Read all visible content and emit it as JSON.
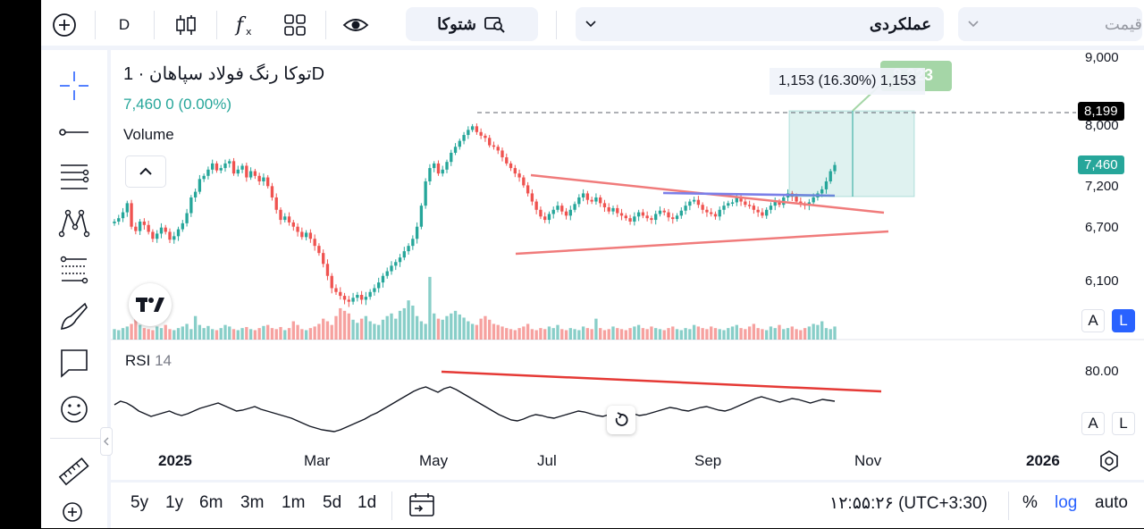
{
  "toolbar": {
    "interval": "D",
    "symbol_search": "شتوکا",
    "chart_type_select": "عملکردی",
    "price_select": "قیمت"
  },
  "header": {
    "title": "توکا رنگ فولاد سپاهان · 1D",
    "price": "7,460",
    "change": "0 (0.00%)",
    "volume_label": "Volume",
    "rsi_label": "RSI",
    "rsi_length": "14"
  },
  "tooltip": {
    "measure": "1,153 (16.30%) 1,153",
    "target": "8,223"
  },
  "price_axis": {
    "ticks": [
      "9,000",
      "8,000",
      "7,200",
      "6,700",
      "6,100"
    ],
    "last_price_tag": "7,460",
    "line_tag": "8,199"
  },
  "rsi_axis": {
    "ticks": [
      "80.00"
    ]
  },
  "time_axis": {
    "labels": [
      "2025",
      "Mar",
      "May",
      "Jul",
      "Sep",
      "Nov",
      "2026"
    ]
  },
  "axis_buttons": {
    "auto_label": "A",
    "log_label": "L"
  },
  "bottom": {
    "ranges": [
      "5y",
      "1y",
      "6m",
      "3m",
      "1m",
      "5d",
      "1d"
    ],
    "clock": "۱۲:۵۵:۲۶ (UTC+3:30)",
    "percent": "%",
    "log": "log",
    "auto": "auto"
  },
  "colors": {
    "up": "#26a69a",
    "down": "#ef5350",
    "accent": "#2962ff"
  },
  "chart_data": {
    "type": "candlestick",
    "title": "توکا رنگ فولاد سپاهان · 1D",
    "x_labels": [
      "2025",
      "Mar",
      "May",
      "Jul",
      "Sep",
      "Nov",
      "2026"
    ],
    "y_ticks": [
      9000,
      8000,
      7200,
      6700,
      6100
    ],
    "last_price": 7460,
    "horizontal_line": 8199,
    "price_path": [
      6760,
      6800,
      6870,
      6980,
      6700,
      6650,
      6760,
      6720,
      6640,
      6560,
      6620,
      6690,
      6640,
      6550,
      6590,
      6670,
      6740,
      6860,
      7050,
      7120,
      7280,
      7320,
      7400,
      7480,
      7390,
      7420,
      7480,
      7510,
      7350,
      7400,
      7450,
      7300,
      7380,
      7320,
      7250,
      7300,
      7190,
      7050,
      6900,
      6780,
      6820,
      6750,
      6700,
      6640,
      6580,
      6630,
      6560,
      6480,
      6400,
      6280,
      6150,
      6020,
      5980,
      5940,
      5900,
      5880,
      5920,
      5950,
      5900,
      5930,
      5980,
      6020,
      6080,
      6150,
      6200,
      6260,
      6300,
      6350,
      6420,
      6480,
      6560,
      6700,
      6950,
      7250,
      7420,
      7480,
      7350,
      7400,
      7500,
      7620,
      7700,
      7780,
      7860,
      7930,
      7980,
      7900,
      7850,
      7820,
      7720,
      7700,
      7650,
      7560,
      7480,
      7420,
      7350,
      7300,
      7200,
      7100,
      7000,
      6900,
      6820,
      6780,
      6850,
      6900,
      6950,
      6880,
      6830,
      6900,
      6970,
      7050,
      7100,
      7020,
      7000,
      7050,
      6980,
      6930,
      6880,
      6920,
      6860,
      6830,
      6800,
      6760,
      6820,
      6870,
      6830,
      6800,
      6780,
      6850,
      6890,
      6870,
      6810,
      6790,
      6830,
      6890,
      6950,
      7000,
      7020,
      6960,
      6900,
      6870,
      6850,
      6820,
      6900,
      6950,
      6980,
      6990,
      7050,
      7000,
      6960,
      6950,
      6900,
      6870,
      6830,
      6900,
      6950,
      7000,
      6960,
      7050,
      7100,
      7060,
      7000,
      6970,
      6950,
      6990,
      7050,
      7100,
      7150,
      7250,
      7380,
      7460
    ],
    "volume_path": [
      20,
      18,
      22,
      25,
      30,
      55,
      28,
      22,
      20,
      18,
      25,
      22,
      28,
      20,
      18,
      22,
      25,
      30,
      20,
      45,
      28,
      22,
      26,
      20,
      18,
      22,
      28,
      25,
      20,
      18,
      22,
      24,
      20,
      18,
      22,
      26,
      28,
      22,
      20,
      24,
      18,
      22,
      35,
      28,
      20,
      18,
      22,
      25,
      30,
      40,
      35,
      28,
      45,
      60,
      55,
      50,
      38,
      32,
      40,
      45,
      35,
      30,
      28,
      38,
      45,
      50,
      40,
      55,
      60,
      75,
      65,
      45,
      35,
      30,
      120,
      50,
      40,
      38,
      45,
      50,
      55,
      48,
      42,
      35,
      30,
      28,
      40,
      45,
      38,
      30,
      28,
      25,
      22,
      20,
      18,
      22,
      25,
      30,
      20,
      18,
      22,
      20,
      25,
      22,
      28,
      20,
      18,
      22,
      20,
      18,
      25,
      22,
      20,
      40,
      22,
      18,
      20,
      25,
      22,
      20,
      18,
      22,
      25,
      28,
      22,
      20,
      25,
      22,
      20,
      18,
      22,
      25,
      20,
      18,
      22,
      20,
      28,
      25,
      22,
      20,
      25,
      22,
      20,
      18,
      22,
      25,
      28,
      22,
      20,
      25,
      30,
      22,
      20,
      18,
      25,
      22,
      28,
      20,
      22,
      25,
      20,
      18,
      22,
      25,
      30,
      28,
      35,
      22,
      20,
      25,
      22,
      30,
      25,
      22,
      20,
      130
    ],
    "rsi_path": [
      40,
      44,
      42,
      38,
      33,
      30,
      27,
      29,
      31,
      33,
      30,
      28,
      30,
      33,
      36,
      38,
      40,
      42,
      39,
      36,
      33,
      34,
      36,
      38,
      35,
      33,
      31,
      29,
      27,
      25,
      22,
      19,
      16,
      14,
      12,
      11,
      10,
      12,
      15,
      18,
      21,
      24,
      28,
      31,
      35,
      39,
      43,
      47,
      51,
      55,
      58,
      60,
      57,
      54,
      58,
      60,
      57,
      53,
      49,
      45,
      41,
      37,
      33,
      29,
      26,
      23,
      22,
      24,
      27,
      29,
      28,
      26,
      25,
      27,
      29,
      31,
      33,
      32,
      30,
      28,
      27,
      29,
      31,
      33,
      32,
      30,
      28,
      29,
      31,
      33,
      35,
      37,
      36,
      34,
      33,
      35,
      37,
      38,
      36,
      34,
      33,
      35,
      38,
      41,
      44,
      47,
      49,
      47,
      45,
      43,
      45,
      47,
      46,
      44,
      42,
      44,
      46,
      45,
      44
    ]
  }
}
